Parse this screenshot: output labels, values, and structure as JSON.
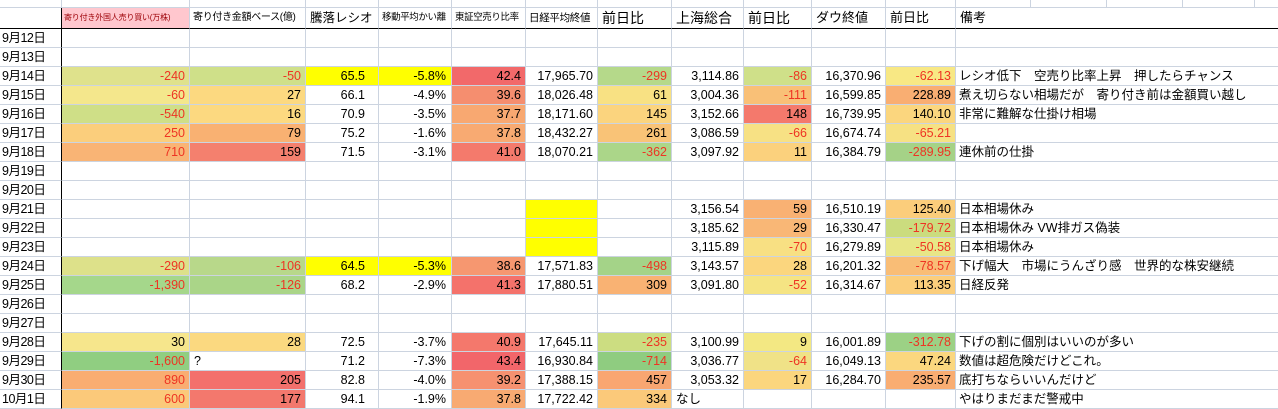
{
  "palette": {
    "red_text": "#ee3423",
    "gridline": "#ccd4e0",
    "freeze_line": "#000000",
    "highlight_yellow": "#ffff00",
    "header_pink_bg": "#ffc7ce",
    "header_pink_fg": "#9c0006"
  },
  "sheet": {
    "headers": [
      {
        "key": "date",
        "label": ""
      },
      {
        "key": "foreign-open-trades",
        "label": "寄り付き外国人売り買い(万株)"
      },
      {
        "key": "open-amount-base",
        "label": "寄り付き金額ベース(億)"
      },
      {
        "key": "advance-decline-ratio",
        "label": "騰落レシオ"
      },
      {
        "key": "ma-deviation",
        "label": "移動平均かい離"
      },
      {
        "key": "tse-short-ratio",
        "label": "東証空売り比率"
      },
      {
        "key": "nikkei-close",
        "label": "日経平均終値"
      },
      {
        "key": "nikkei-change",
        "label": "前日比"
      },
      {
        "key": "shanghai-composite",
        "label": "上海総合"
      },
      {
        "key": "shanghai-change",
        "label": "前日比"
      },
      {
        "key": "dow-close",
        "label": "ダウ終値"
      },
      {
        "key": "dow-change",
        "label": "前日比"
      },
      {
        "key": "remarks",
        "label": "備考"
      }
    ],
    "rows": [
      {
        "date": "9月12日",
        "cells": [
          null,
          null,
          null,
          null,
          null,
          null,
          null,
          null,
          null,
          null,
          null,
          null
        ]
      },
      {
        "date": "9月13日",
        "cells": [
          null,
          null,
          null,
          null,
          null,
          null,
          null,
          null,
          null,
          null,
          null,
          null
        ]
      },
      {
        "date": "9月14日",
        "cells": [
          {
            "v": "-240",
            "bg": "#dfe28c",
            "fg": "red"
          },
          {
            "v": "-50",
            "bg": "#cfe089",
            "fg": "red"
          },
          {
            "v": "65.5",
            "bg": "#ffff00"
          },
          {
            "v": "-5.8%",
            "bg": "#ffff00"
          },
          {
            "v": "42.4",
            "bg": "#f2696a"
          },
          {
            "v": "17,965.70"
          },
          {
            "v": "-299",
            "bg": "#b5d98a",
            "fg": "red"
          },
          {
            "v": "3,114.86"
          },
          {
            "v": "-86",
            "bg": "#cfe089",
            "fg": "red"
          },
          {
            "v": "16,370.96"
          },
          {
            "v": "-62.13",
            "bg": "#f8e884",
            "fg": "red"
          },
          {
            "v": "レシオ低下　空売り比率上昇　押したらチャンス"
          }
        ]
      },
      {
        "date": "9月15日",
        "cells": [
          {
            "v": "-60",
            "bg": "#f4e78c",
            "fg": "red"
          },
          {
            "v": "27",
            "bg": "#fcd980"
          },
          {
            "v": "66.1"
          },
          {
            "v": "-4.9%"
          },
          {
            "v": "39.6",
            "bg": "#f58e6f"
          },
          {
            "v": "18,026.48"
          },
          {
            "v": "61",
            "bg": "#f8e183"
          },
          {
            "v": "3,004.36"
          },
          {
            "v": "-111",
            "bg": "#f9c077",
            "fg": "red"
          },
          {
            "v": "16,599.85"
          },
          {
            "v": "228.89",
            "bg": "#f9ae72"
          },
          {
            "v": "煮え切らない相場だが　寄り付き前は金額買い越し"
          }
        ]
      },
      {
        "date": "9月16日",
        "cells": [
          {
            "v": "-540",
            "bg": "#cfdf87",
            "fg": "red"
          },
          {
            "v": "16",
            "bg": "#fcd980"
          },
          {
            "v": "70.9"
          },
          {
            "v": "-3.5%"
          },
          {
            "v": "37.7",
            "bg": "#f8a871"
          },
          {
            "v": "18,171.60"
          },
          {
            "v": "145",
            "bg": "#fbd47e"
          },
          {
            "v": "3,152.66"
          },
          {
            "v": "148",
            "bg": "#f4796c"
          },
          {
            "v": "16,739.95"
          },
          {
            "v": "140.10",
            "bg": "#fbd67e"
          },
          {
            "v": "非常に難解な仕掛け相場"
          }
        ]
      },
      {
        "date": "9月17日",
        "cells": [
          {
            "v": "250",
            "bg": "#fbce7c",
            "fg": "red"
          },
          {
            "v": "79",
            "bg": "#f9b172"
          },
          {
            "v": "75.2"
          },
          {
            "v": "-1.6%"
          },
          {
            "v": "37.8",
            "bg": "#f8aa72"
          },
          {
            "v": "18,432.27"
          },
          {
            "v": "261",
            "bg": "#f9c377"
          },
          {
            "v": "3,086.59"
          },
          {
            "v": "-66",
            "bg": "#f7e184",
            "fg": "red"
          },
          {
            "v": "16,674.74"
          },
          {
            "v": "-65.21",
            "bg": "#f6e183",
            "fg": "red"
          },
          null
        ]
      },
      {
        "date": "9月18日",
        "cells": [
          {
            "v": "710",
            "bg": "#f9b475",
            "fg": "red"
          },
          {
            "v": "159",
            "bg": "#f4806e"
          },
          {
            "v": "71.5"
          },
          {
            "v": "-3.1%"
          },
          {
            "v": "41.0",
            "bg": "#f47a6c"
          },
          {
            "v": "18,070.21"
          },
          {
            "v": "-362",
            "bg": "#abd689",
            "fg": "red"
          },
          {
            "v": "3,097.92"
          },
          {
            "v": "11",
            "bg": "#fbd17d"
          },
          {
            "v": "16,384.79"
          },
          {
            "v": "-289.95",
            "bg": "#a5d287",
            "fg": "red"
          },
          {
            "v": "連休前の仕掛"
          }
        ]
      },
      {
        "date": "9月19日",
        "cells": [
          null,
          null,
          null,
          null,
          null,
          null,
          null,
          null,
          null,
          null,
          null,
          null
        ]
      },
      {
        "date": "9月20日",
        "cells": [
          null,
          null,
          null,
          null,
          null,
          null,
          null,
          null,
          null,
          null,
          null,
          null
        ]
      },
      {
        "date": "9月21日",
        "cells": [
          null,
          null,
          null,
          null,
          null,
          {
            "v": "",
            "bg": "#ffff00"
          },
          null,
          {
            "v": "3,156.54"
          },
          {
            "v": "59",
            "bg": "#f9b173"
          },
          {
            "v": "16,510.19"
          },
          {
            "v": "125.40",
            "bg": "#fbcd7b"
          },
          {
            "v": "日本相場休み"
          }
        ]
      },
      {
        "date": "9月22日",
        "cells": [
          null,
          null,
          null,
          null,
          null,
          {
            "v": "",
            "bg": "#ffff00"
          },
          null,
          {
            "v": "3,185.62"
          },
          {
            "v": "29",
            "bg": "#f9b776"
          },
          {
            "v": "16,330.47"
          },
          {
            "v": "-179.72",
            "bg": "#cbdc7e",
            "fg": "red"
          },
          {
            "v": "日本相場休み VW排ガス偽装"
          }
        ]
      },
      {
        "date": "9月23日",
        "cells": [
          null,
          null,
          null,
          null,
          null,
          {
            "v": "",
            "bg": "#ffff00"
          },
          null,
          {
            "v": "3,115.89"
          },
          {
            "v": "-70",
            "bg": "#f8e083",
            "fg": "red"
          },
          {
            "v": "16,279.89"
          },
          {
            "v": "-50.58",
            "bg": "#e8e687",
            "fg": "red"
          },
          {
            "v": "日本相場休み"
          }
        ]
      },
      {
        "date": "9月24日",
        "cells": [
          {
            "v": "-290",
            "bg": "#dde18a",
            "fg": "red"
          },
          {
            "v": "-106",
            "bg": "#b8d88a",
            "fg": "red"
          },
          {
            "v": "64.5",
            "bg": "#ffff00"
          },
          {
            "v": "-5.3%",
            "bg": "#ffff00"
          },
          {
            "v": "38.6",
            "bg": "#f69770"
          },
          {
            "v": "17,571.83"
          },
          {
            "v": "-498",
            "bg": "#a4d388",
            "fg": "red"
          },
          {
            "v": "3,143.57"
          },
          {
            "v": "28",
            "bg": "#fbd67e"
          },
          {
            "v": "16,201.32"
          },
          {
            "v": "-78.57",
            "bg": "#f9bd76",
            "fg": "red"
          },
          {
            "v": "下げ幅大　市場にうんざり感　世界的な株安継続"
          }
        ]
      },
      {
        "date": "9月25日",
        "cells": [
          {
            "v": "-1,390",
            "bg": "#a5d78b",
            "fg": "red"
          },
          {
            "v": "-126",
            "bg": "#aad588",
            "fg": "red"
          },
          {
            "v": "68.2"
          },
          {
            "v": "-2.9%"
          },
          {
            "v": "41.3",
            "bg": "#f4726b"
          },
          {
            "v": "17,880.51"
          },
          {
            "v": "309",
            "bg": "#f9b273"
          },
          {
            "v": "3,091.80"
          },
          {
            "v": "-52",
            "bg": "#f5e483",
            "fg": "red"
          },
          {
            "v": "16,314.67"
          },
          {
            "v": "113.35",
            "bg": "#fbce7c"
          },
          {
            "v": "日経反発"
          }
        ]
      },
      {
        "date": "9月26日",
        "cells": [
          null,
          null,
          null,
          null,
          null,
          null,
          null,
          null,
          null,
          null,
          null,
          null
        ]
      },
      {
        "date": "9月27日",
        "cells": [
          null,
          null,
          null,
          null,
          null,
          null,
          null,
          null,
          null,
          null,
          null,
          null
        ]
      },
      {
        "date": "9月28日",
        "cells": [
          {
            "v": "30",
            "bg": "#f6e68c"
          },
          {
            "v": "28",
            "bg": "#fbd980"
          },
          {
            "v": "72.5"
          },
          {
            "v": "-3.7%"
          },
          {
            "v": "40.9",
            "bg": "#f4786c"
          },
          {
            "v": "17,645.11"
          },
          {
            "v": "-235",
            "bg": "#ccdd81",
            "fg": "red"
          },
          {
            "v": "3,100.99"
          },
          {
            "v": "9",
            "bg": "#f3e883"
          },
          {
            "v": "16,001.89"
          },
          {
            "v": "-312.78",
            "bg": "#9cd185",
            "fg": "red"
          },
          {
            "v": "下げの割に個別はいいのが多い"
          }
        ]
      },
      {
        "date": "9月29日",
        "cells": [
          {
            "v": "-1,600",
            "bg": "#90ce81",
            "fg": "red"
          },
          {
            "v": "?",
            "align": "left"
          },
          {
            "v": "71.2"
          },
          {
            "v": "-7.3%"
          },
          {
            "v": "43.4",
            "bg": "#f2666a"
          },
          {
            "v": "16,930.84"
          },
          {
            "v": "-714",
            "bg": "#8fcc80",
            "fg": "red"
          },
          {
            "v": "3,036.77"
          },
          {
            "v": "-64",
            "bg": "#f0e287",
            "fg": "red"
          },
          {
            "v": "16,049.13"
          },
          {
            "v": "47.24",
            "bg": "#fbd77f"
          },
          {
            "v": "数値は超危険だけどこれ。"
          }
        ]
      },
      {
        "date": "9月30日",
        "cells": [
          {
            "v": "890",
            "bg": "#f9ad71",
            "fg": "red"
          },
          {
            "v": "205",
            "bg": "#f3706c"
          },
          {
            "v": "82.8"
          },
          {
            "v": "-4.0%"
          },
          {
            "v": "39.2",
            "bg": "#f69170"
          },
          {
            "v": "17,388.15"
          },
          {
            "v": "457",
            "bg": "#f9a671"
          },
          {
            "v": "3,053.32"
          },
          {
            "v": "17",
            "bg": "#fbd67e"
          },
          {
            "v": "16,284.70"
          },
          {
            "v": "235.57",
            "bg": "#f9ad72"
          },
          {
            "v": "底打ちならいいんだけど"
          }
        ]
      },
      {
        "date": "10月1日",
        "cells": [
          {
            "v": "600",
            "bg": "#fbc97a",
            "fg": "red"
          },
          {
            "v": "177",
            "bg": "#f3786d"
          },
          {
            "v": "94.1"
          },
          {
            "v": "-1.9%"
          },
          {
            "v": "37.8",
            "bg": "#f8aa72"
          },
          {
            "v": "17,722.42"
          },
          {
            "v": "334",
            "bg": "#fbc97a"
          },
          {
            "v": "なし",
            "align": "left"
          },
          null,
          null,
          null,
          {
            "v": "やはりまだまだ警戒中"
          }
        ]
      }
    ]
  }
}
